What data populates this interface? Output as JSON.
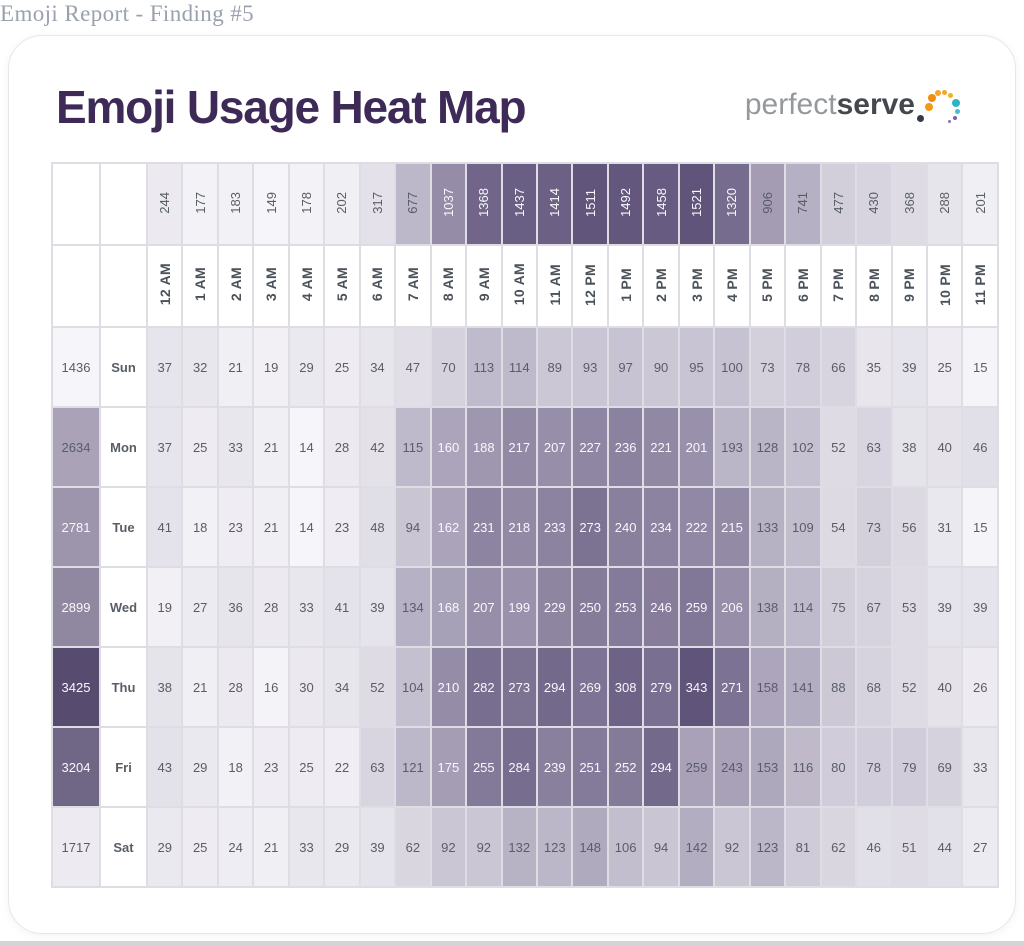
{
  "page_header": "Emoji Report - Finding #5",
  "title": "Emoji Usage Heat Map",
  "logo": {
    "text_light": "perfect",
    "text_bold": "serve",
    "dot_colors": [
      "#343b45",
      "#f39a17",
      "#ef8d15",
      "#f5a623",
      "#f5a623",
      "#f2b21e",
      "#2eb3c6",
      "#3cc0d2",
      "#7a5fa8",
      "#8a6fb5"
    ]
  },
  "colors": {
    "title_text": "#3e2a57",
    "page_header_text": "#9aa1ac",
    "grid_border": "#dedde4",
    "label_text": "#4b525a",
    "number_text": "#585e66",
    "white_number_text": "#f8f8fb"
  },
  "chart_data": {
    "type": "heatmap",
    "title": "Emoji Usage Heat Map",
    "x_labels": [
      "12 AM",
      "1 AM",
      "2 AM",
      "3 AM",
      "4 AM",
      "5 AM",
      "6 AM",
      "7 AM",
      "8 AM",
      "9 AM",
      "10 AM",
      "11 AM",
      "12 PM",
      "1 PM",
      "2 PM",
      "3 PM",
      "4 PM",
      "5 PM",
      "6 PM",
      "7 PM",
      "8 PM",
      "9 PM",
      "10 PM",
      "11 PM"
    ],
    "y_labels": [
      "Sun",
      "Mon",
      "Tue",
      "Wed",
      "Thu",
      "Fri",
      "Sat"
    ],
    "column_totals": [
      244,
      177,
      183,
      149,
      178,
      202,
      317,
      677,
      1037,
      1368,
      1437,
      1414,
      1511,
      1492,
      1458,
      1521,
      1320,
      906,
      741,
      477,
      430,
      368,
      288,
      201
    ],
    "row_totals": [
      1436,
      2634,
      2781,
      2899,
      3425,
      3204,
      1717
    ],
    "values": [
      [
        37,
        32,
        21,
        19,
        29,
        25,
        34,
        47,
        70,
        113,
        114,
        89,
        93,
        97,
        90,
        95,
        100,
        73,
        78,
        66,
        35,
        39,
        25,
        15
      ],
      [
        37,
        25,
        33,
        21,
        14,
        28,
        42,
        115,
        160,
        188,
        217,
        207,
        227,
        236,
        221,
        201,
        193,
        128,
        102,
        52,
        63,
        38,
        40,
        46
      ],
      [
        41,
        18,
        23,
        21,
        14,
        23,
        48,
        94,
        162,
        231,
        218,
        233,
        273,
        240,
        234,
        222,
        215,
        133,
        109,
        54,
        73,
        56,
        31,
        15
      ],
      [
        19,
        27,
        36,
        28,
        33,
        41,
        39,
        134,
        168,
        207,
        199,
        229,
        250,
        253,
        246,
        259,
        206,
        138,
        114,
        75,
        67,
        53,
        39,
        39
      ],
      [
        38,
        21,
        28,
        16,
        30,
        34,
        52,
        104,
        210,
        282,
        273,
        294,
        269,
        308,
        279,
        343,
        271,
        158,
        141,
        88,
        68,
        52,
        40,
        26
      ],
      [
        43,
        29,
        18,
        23,
        25,
        22,
        63,
        121,
        175,
        255,
        284,
        239,
        251,
        252,
        294,
        259,
        243,
        153,
        116,
        80,
        78,
        79,
        69,
        33
      ],
      [
        29,
        25,
        24,
        21,
        33,
        29,
        39,
        62,
        92,
        92,
        132,
        123,
        148,
        106,
        94,
        142,
        92,
        123,
        81,
        62,
        46,
        51,
        44,
        27
      ]
    ],
    "scale": {
      "light": "#f6f5f9",
      "dark": "#60547b",
      "groups": {
        "cells": {
          "min": 14,
          "max": 343,
          "gamma": 0.85,
          "white_min": 160
        },
        "column_totals": {
          "min": 149,
          "max": 1521,
          "gamma": 1.0,
          "white_min": 1000
        },
        "row_totals": {
          "min": 1436,
          "max": 3425,
          "gamma": 1.45,
          "white_min": 2700,
          "dark": "#574b70"
        }
      }
    },
    "anomalies": [
      {
        "row": 1,
        "col": 16,
        "t": 0.4
      },
      {
        "row": 5,
        "col": 15,
        "t": 0.52
      },
      {
        "row": 5,
        "col": 16,
        "t": 0.52
      }
    ]
  }
}
